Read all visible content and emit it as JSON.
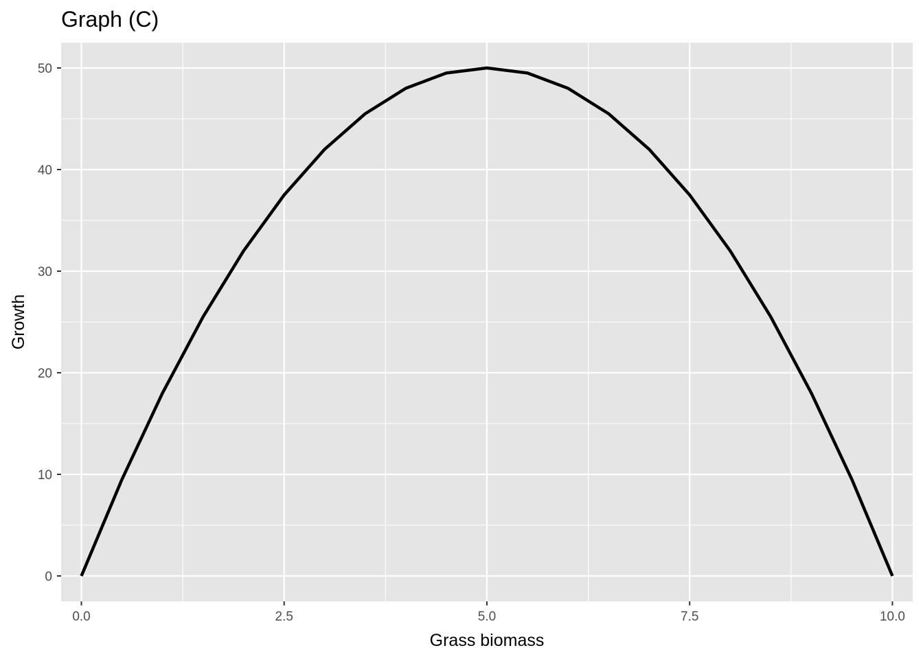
{
  "chart_data": {
    "type": "line",
    "title": "Graph (C)",
    "xlabel": "Grass biomass",
    "ylabel": "Growth",
    "xlim": [
      -0.25,
      10.25
    ],
    "ylim": [
      -2.5,
      52.5
    ],
    "x_ticks": [
      0,
      2.5,
      5,
      7.5,
      10
    ],
    "x_tick_labels": [
      "0.0",
      "2.5",
      "5.0",
      "7.5",
      "10.0"
    ],
    "y_ticks": [
      0,
      10,
      20,
      30,
      40,
      50
    ],
    "y_tick_labels": [
      "0",
      "10",
      "20",
      "30",
      "40",
      "50"
    ],
    "grid": true,
    "series": [
      {
        "x": [
          0,
          0.5,
          1,
          1.5,
          2,
          2.5,
          3,
          3.5,
          4,
          4.5,
          5,
          5.5,
          6,
          6.5,
          7,
          7.5,
          8,
          8.5,
          9,
          9.5,
          10
        ],
        "values": [
          0,
          9.5,
          18,
          25.5,
          32,
          37.5,
          42,
          45.5,
          48,
          49.5,
          50,
          49.5,
          48,
          45.5,
          42,
          37.5,
          32,
          25.5,
          18,
          9.5,
          0
        ]
      }
    ],
    "colors": {
      "panel": "#e5e5e5",
      "grid": "#ffffff",
      "line": "#000000",
      "tick_text": "#4d4d4d",
      "tick_mark": "#333333"
    }
  }
}
